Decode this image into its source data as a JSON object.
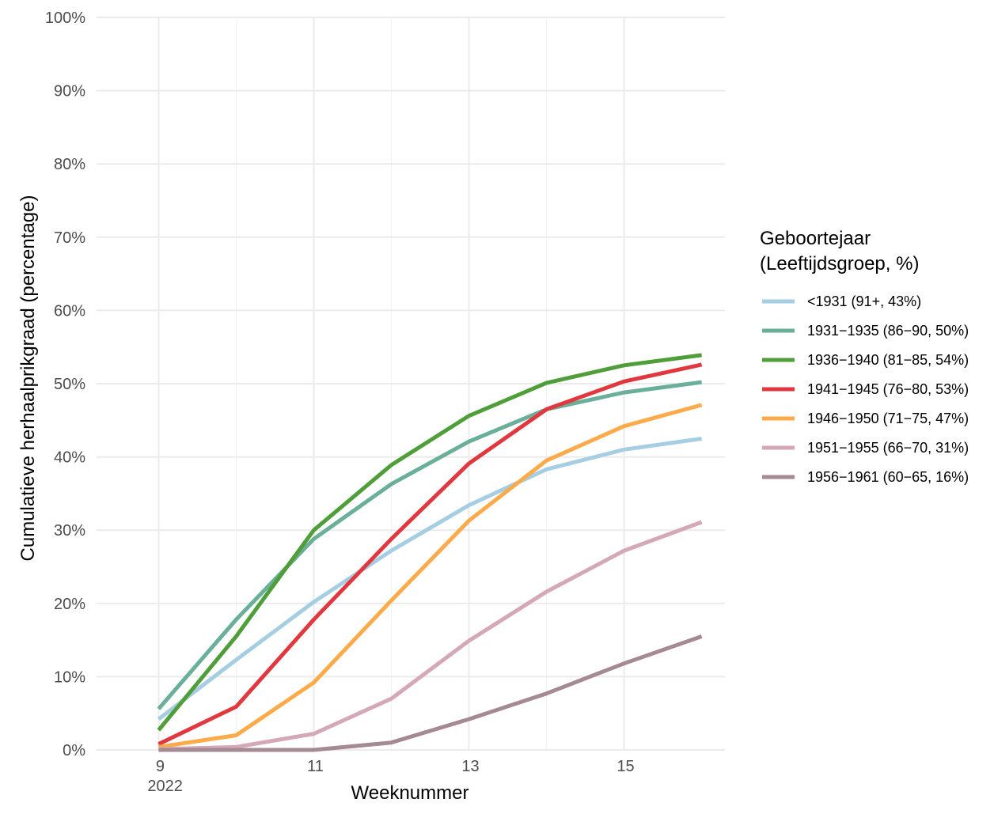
{
  "chart_data": {
    "type": "line",
    "title": "",
    "xlabel": "Weeknummer",
    "ylabel": "Cumulatieve herhaalprikgraad (percentage)",
    "x": [
      9,
      10,
      11,
      12,
      13,
      14,
      15,
      16
    ],
    "xlim": [
      8.2,
      16.3
    ],
    "ylim": [
      0,
      100
    ],
    "x_ticks": [
      9,
      11,
      13,
      15
    ],
    "x_tick_labels": [
      "9",
      "11",
      "13",
      "15"
    ],
    "x_year_label": "2022",
    "y_ticks": [
      0,
      10,
      20,
      30,
      40,
      50,
      60,
      70,
      80,
      90,
      100
    ],
    "y_tick_labels": [
      "0%",
      "10%",
      "20%",
      "30%",
      "40%",
      "50%",
      "60%",
      "70%",
      "80%",
      "90%",
      "100%"
    ],
    "grid": true,
    "legend": {
      "position": "right",
      "title_line1": "Geboortejaar",
      "title_line2": "(Leeftijdsgroep, %)"
    },
    "series": [
      {
        "name": "<1931 (91+, 43%)",
        "color": "#a6cee3",
        "values": [
          4.2,
          12.3,
          20.2,
          27.2,
          33.4,
          38.3,
          41.0,
          42.5
        ]
      },
      {
        "name": "1931−1935 (86−90, 50%)",
        "color": "#6aaf9a",
        "values": [
          5.6,
          17.8,
          28.8,
          36.3,
          42.1,
          46.5,
          48.8,
          50.2
        ]
      },
      {
        "name": "1936−1940 (81−85, 54%)",
        "color": "#4f9e3a",
        "values": [
          2.7,
          15.5,
          30.0,
          38.9,
          45.6,
          50.1,
          52.5,
          53.9
        ]
      },
      {
        "name": "1941−1945 (76−80, 53%)",
        "color": "#e0383e",
        "values": [
          0.8,
          5.9,
          17.8,
          28.8,
          39.1,
          46.5,
          50.3,
          52.6
        ]
      },
      {
        "name": "1946−1950 (71−75, 47%)",
        "color": "#fdab4a",
        "values": [
          0.4,
          2.0,
          9.2,
          20.4,
          31.3,
          39.5,
          44.2,
          47.1
        ]
      },
      {
        "name": "1951−1955 (66−70, 31%)",
        "color": "#d4a8b7",
        "values": [
          0.1,
          0.4,
          2.2,
          7.0,
          14.9,
          21.6,
          27.2,
          31.1
        ]
      },
      {
        "name": "1956−1961 (60−65, 16%)",
        "color": "#a58a94",
        "values": [
          0.0,
          0.0,
          0.0,
          1.0,
          4.2,
          7.7,
          11.8,
          15.5
        ]
      }
    ]
  }
}
